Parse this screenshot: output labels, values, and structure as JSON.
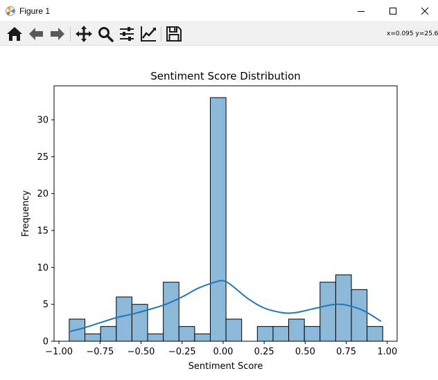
{
  "window": {
    "title": "Figure 1",
    "app_icon": "matplotlib-icon",
    "controls": [
      "minimize-icon",
      "maximize-icon",
      "close-icon"
    ]
  },
  "toolbar": {
    "tools": [
      {
        "name": "home-icon"
      },
      {
        "name": "back-arrow-icon"
      },
      {
        "name": "forward-arrow-icon"
      },
      {
        "name": "pan-move-icon"
      },
      {
        "name": "zoom-magnifier-icon"
      },
      {
        "name": "configure-subplots-icon"
      },
      {
        "name": "edit-axis-icon"
      },
      {
        "name": "save-figure-icon"
      }
    ],
    "coords_text": "x=0.095 y=25.61"
  },
  "chart_data": {
    "type": "bar",
    "title": "Sentiment Score Distribution",
    "xlabel": "Sentiment Score",
    "ylabel": "Frequency",
    "xlim": [
      -1.03,
      1.06
    ],
    "ylim": [
      0,
      34.6
    ],
    "xticks": [
      -1.0,
      -0.75,
      -0.5,
      -0.25,
      0.0,
      0.25,
      0.5,
      0.75,
      1.0
    ],
    "xtick_labels": [
      "−1.00",
      "−0.75",
      "−0.50",
      "−0.25",
      "0.00",
      "0.25",
      "0.50",
      "0.75",
      "1.00"
    ],
    "yticks": [
      0,
      5,
      10,
      15,
      20,
      25,
      30
    ],
    "ytick_labels": [
      "0",
      "5",
      "10",
      "15",
      "20",
      "25",
      "30"
    ],
    "bin_start": -0.9375,
    "bin_width": 0.0955,
    "counts": [
      3,
      1,
      2,
      6,
      5,
      1,
      8,
      2,
      1,
      33,
      3,
      0,
      2,
      2,
      3,
      2,
      8,
      9,
      7,
      2
    ],
    "bar_color": "#8cb9d9",
    "bar_edge_color": "#000000",
    "kde_color": "#1f77b4",
    "kde_curve": {
      "x": [
        -0.9375,
        -0.85,
        -0.75,
        -0.65,
        -0.55,
        -0.45,
        -0.35,
        -0.25,
        -0.15,
        -0.05,
        0.0,
        0.05,
        0.15,
        0.25,
        0.35,
        0.4,
        0.45,
        0.55,
        0.65,
        0.7,
        0.75,
        0.85,
        0.9625
      ],
      "y": [
        1.3,
        1.8,
        2.5,
        3.2,
        3.7,
        4.3,
        5.0,
        6.0,
        7.2,
        8.0,
        8.2,
        7.6,
        5.8,
        4.5,
        3.9,
        3.8,
        3.9,
        4.4,
        4.9,
        5.0,
        4.9,
        4.2,
        2.7
      ]
    }
  }
}
